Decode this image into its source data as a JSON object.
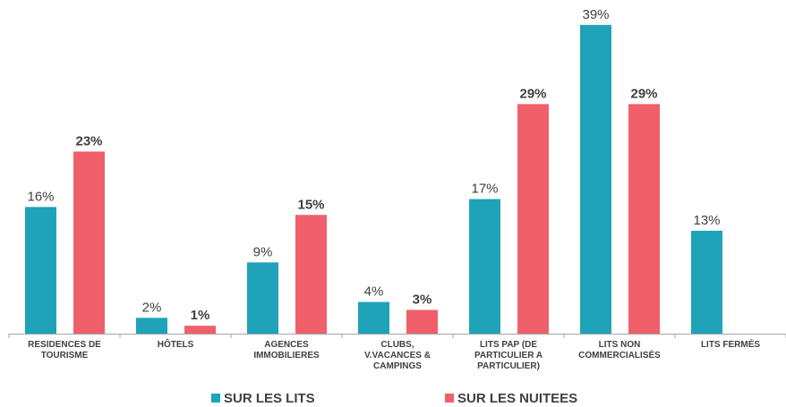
{
  "chart_data": {
    "type": "bar",
    "categories": [
      "RESIDENCES DE TOURISME",
      "HÔTELS",
      "AGENCES IMMOBILIERES",
      "CLUBS, V.VACANCES & CAMPINGS",
      "LITS PAP (DE PARTICULIER A PARTICULIER)",
      "LITS NON COMMERCIALISÉS",
      "LITS FERMÉS"
    ],
    "series": [
      {
        "name": "SUR LES LITS",
        "color": "#1fa3b8",
        "values": [
          16,
          2,
          9,
          4,
          17,
          39,
          13
        ],
        "value_labels": [
          "16%",
          "2%",
          "9%",
          "4%",
          "17%",
          "39%",
          "13%"
        ]
      },
      {
        "name": "SUR LES NUITEES",
        "color": "#f0606a",
        "values": [
          23,
          1,
          15,
          3,
          29,
          29,
          null
        ],
        "value_labels": [
          "23%",
          "1%",
          "15%",
          "3%",
          "29%",
          "29%",
          null
        ]
      }
    ],
    "ylim": [
      0,
      40
    ],
    "grid": false,
    "legend": "bottom"
  }
}
